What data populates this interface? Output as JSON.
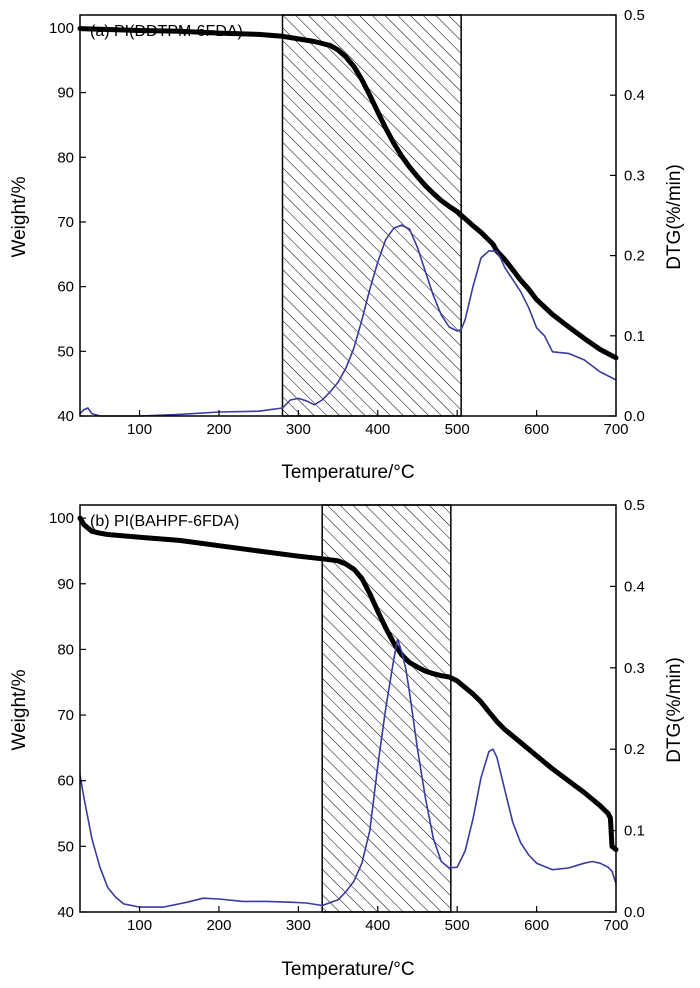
{
  "chart_data": [
    {
      "type": "line",
      "title": "(a) PI(DDTPM-6FDA)",
      "xlabel": "Temperature/°C",
      "ylabel": "Weight/%",
      "y2label": "DTG(%/min)",
      "xlim": [
        25,
        700
      ],
      "ylim": [
        40,
        102
      ],
      "y2lim": [
        0,
        0.5
      ],
      "xticks": [
        "100",
        "200",
        "300",
        "400",
        "500",
        "600",
        "700"
      ],
      "yticks": [
        "40",
        "50",
        "60",
        "70",
        "80",
        "90",
        "100"
      ],
      "y2ticks": [
        "0.0",
        "0.1",
        "0.2",
        "0.3",
        "0.4",
        "0.5"
      ],
      "shaded_region": {
        "x": [
          280,
          505
        ]
      },
      "series": [
        {
          "axis": "left",
          "color": "#000000",
          "x": [
            25,
            100,
            150,
            200,
            250,
            280,
            300,
            320,
            340,
            350,
            360,
            370,
            380,
            390,
            400,
            410,
            420,
            430,
            440,
            450,
            460,
            470,
            480,
            490,
            500,
            510,
            520,
            530,
            540,
            545,
            550,
            560,
            570,
            580,
            590,
            600,
            620,
            640,
            660,
            680,
            700
          ],
          "values": [
            99.9,
            99.6,
            99.5,
            99.2,
            99.0,
            98.7,
            98.3,
            97.9,
            97.3,
            96.6,
            95.5,
            94.0,
            92.0,
            89.6,
            87.0,
            84.5,
            82.2,
            80.2,
            78.5,
            77.0,
            75.6,
            74.4,
            73.3,
            72.4,
            71.6,
            70.5,
            69.4,
            68.4,
            67.2,
            66.6,
            65.5,
            64.2,
            62.6,
            61.0,
            59.6,
            58.0,
            55.7,
            53.8,
            52.0,
            50.3,
            49.0
          ]
        },
        {
          "axis": "right",
          "color": "#3a3aa0",
          "x": [
            25,
            30,
            35,
            40,
            50,
            70,
            100,
            150,
            200,
            250,
            280,
            290,
            300,
            310,
            320,
            330,
            340,
            350,
            360,
            370,
            380,
            390,
            400,
            410,
            420,
            430,
            440,
            450,
            460,
            470,
            480,
            490,
            500,
            505,
            510,
            520,
            530,
            540,
            550,
            555,
            560,
            570,
            580,
            590,
            600,
            610,
            620,
            640,
            660,
            680,
            690,
            700
          ],
          "values": [
            0.003,
            0.008,
            0.01,
            0.003,
            0.0,
            0.0,
            0.0,
            0.002,
            0.005,
            0.006,
            0.01,
            0.02,
            0.022,
            0.019,
            0.014,
            0.02,
            0.03,
            0.042,
            0.06,
            0.085,
            0.12,
            0.158,
            0.192,
            0.22,
            0.234,
            0.238,
            0.233,
            0.21,
            0.18,
            0.15,
            0.126,
            0.111,
            0.106,
            0.108,
            0.12,
            0.162,
            0.197,
            0.206,
            0.205,
            0.196,
            0.185,
            0.17,
            0.155,
            0.135,
            0.11,
            0.1,
            0.08,
            0.078,
            0.07,
            0.055,
            0.05,
            0.045
          ]
        }
      ]
    },
    {
      "type": "line",
      "title": "(b) PI(BAHPF-6FDA)",
      "xlabel": "Temperature/°C",
      "ylabel": "Weight/%",
      "y2label": "DTG(%/min)",
      "xlim": [
        25,
        700
      ],
      "ylim": [
        40,
        102
      ],
      "y2lim": [
        0,
        0.5
      ],
      "xticks": [
        "100",
        "200",
        "300",
        "400",
        "500",
        "600",
        "700"
      ],
      "yticks": [
        "40",
        "50",
        "60",
        "70",
        "80",
        "90",
        "100"
      ],
      "y2ticks": [
        "0.0",
        "0.1",
        "0.2",
        "0.3",
        "0.4",
        "0.5"
      ],
      "shaded_region": {
        "x": [
          330,
          492
        ]
      },
      "series": [
        {
          "axis": "left",
          "color": "#000000",
          "x": [
            25,
            30,
            40,
            50,
            60,
            80,
            100,
            150,
            200,
            250,
            300,
            330,
            350,
            360,
            370,
            380,
            390,
            400,
            410,
            420,
            430,
            440,
            450,
            460,
            470,
            480,
            490,
            500,
            510,
            520,
            530,
            540,
            550,
            560,
            580,
            600,
            620,
            640,
            660,
            680,
            690,
            693,
            695,
            700
          ],
          "values": [
            100.0,
            99.0,
            98.0,
            97.7,
            97.5,
            97.3,
            97.1,
            96.6,
            95.8,
            95.0,
            94.2,
            93.8,
            93.5,
            93.0,
            92.2,
            90.8,
            88.5,
            85.8,
            83.3,
            81.0,
            79.2,
            78.0,
            77.3,
            76.7,
            76.3,
            76.0,
            75.8,
            75.2,
            74.2,
            73.2,
            72.0,
            70.5,
            69.0,
            67.8,
            65.8,
            63.8,
            61.8,
            60.0,
            58.2,
            56.2,
            55.0,
            54.3,
            50.0,
            49.5
          ]
        },
        {
          "axis": "right",
          "color": "#3a3aa0",
          "x": [
            25,
            30,
            40,
            50,
            60,
            70,
            80,
            100,
            130,
            160,
            180,
            200,
            230,
            260,
            290,
            310,
            330,
            350,
            360,
            370,
            380,
            390,
            400,
            410,
            420,
            425,
            430,
            435,
            440,
            450,
            460,
            470,
            480,
            490,
            500,
            510,
            520,
            530,
            540,
            545,
            550,
            560,
            570,
            580,
            590,
            600,
            620,
            640,
            660,
            670,
            680,
            690,
            695,
            700
          ],
          "values": [
            0.168,
            0.14,
            0.09,
            0.055,
            0.03,
            0.018,
            0.01,
            0.006,
            0.006,
            0.012,
            0.017,
            0.016,
            0.013,
            0.013,
            0.012,
            0.011,
            0.008,
            0.015,
            0.025,
            0.038,
            0.06,
            0.1,
            0.18,
            0.25,
            0.31,
            0.335,
            0.32,
            0.3,
            0.27,
            0.2,
            0.14,
            0.09,
            0.062,
            0.054,
            0.055,
            0.075,
            0.115,
            0.165,
            0.197,
            0.2,
            0.19,
            0.15,
            0.11,
            0.085,
            0.07,
            0.06,
            0.052,
            0.054,
            0.06,
            0.062,
            0.06,
            0.055,
            0.05,
            0.035
          ]
        }
      ]
    }
  ]
}
